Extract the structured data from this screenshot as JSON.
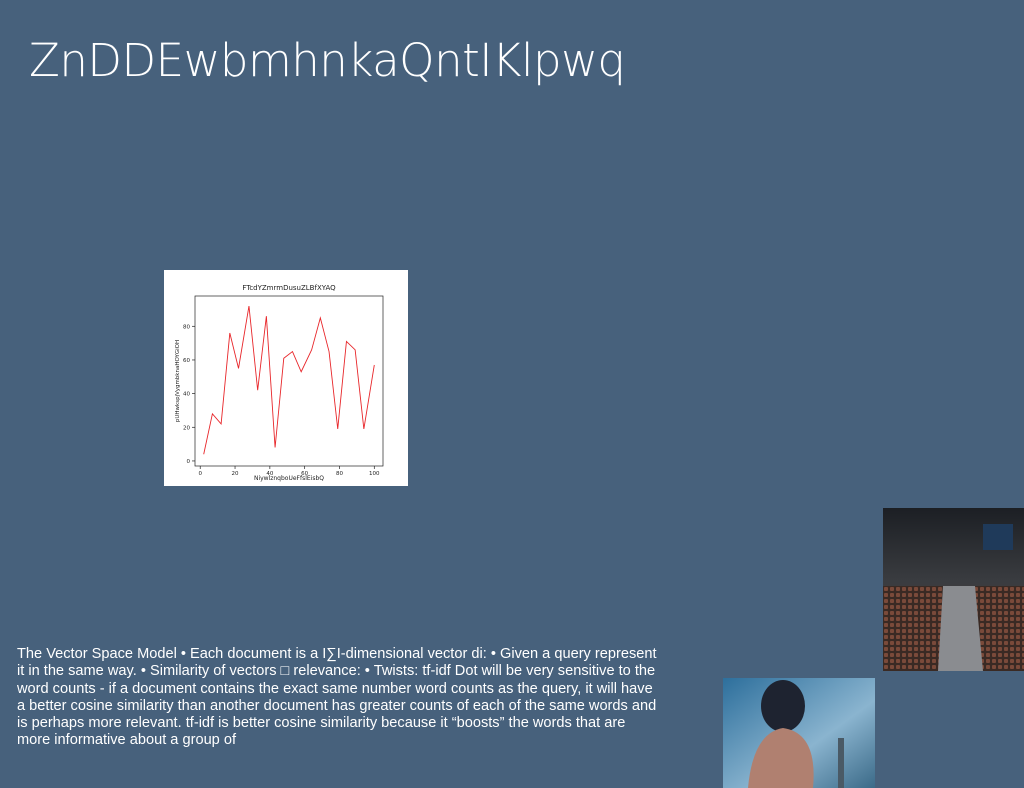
{
  "title": "ZnDDEwbmhnkaQntIKlpwq",
  "body": "The Vector Space Model • Each document is a I∑I-dimensional vector di: • Given a query represent it in the same way. • Similarity of vectors □ relevance: • Twists:  tf-idf Dot will be very sensitive to the word counts - if a document contains the exact same number word counts as the query, it will have a better cosine similarity than another document has greater counts of each of the same words and is perhaps more relevant. tf-idf is better cosine similarity because it “boosts” the words that are more informative about a group of",
  "chart_data": {
    "type": "line",
    "title": "FTcdYZmrmDusuZLBfXYAQ",
    "x_label": "NiywlznqboUeFfslEisbQ",
    "y_label": "pUHwkspjVygmbknaHOYGiOH",
    "x": [
      2,
      7,
      12,
      17,
      22,
      28,
      33,
      38,
      43,
      48,
      53,
      58,
      64,
      69,
      74,
      79,
      84,
      89,
      94,
      100
    ],
    "values": [
      4,
      28,
      22,
      76,
      55,
      92,
      42,
      86,
      8,
      61,
      65,
      53,
      66,
      85,
      65,
      19,
      71,
      66,
      19,
      57
    ],
    "color": "#e8262a",
    "xlim": [
      -3,
      105
    ],
    "xticks": [
      0,
      20,
      40,
      60,
      80,
      100
    ],
    "ylim": [
      -3,
      98
    ],
    "yticks": [
      0,
      20,
      40,
      60,
      80
    ]
  }
}
